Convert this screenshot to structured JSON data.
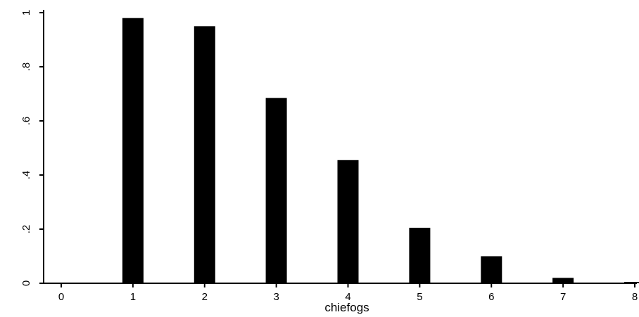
{
  "chart_data": {
    "type": "bar",
    "title": "",
    "xlabel": "chiefogs",
    "ylabel": "",
    "x": [
      1,
      2,
      3,
      4,
      5,
      6,
      7,
      8
    ],
    "values": [
      0.98,
      0.95,
      0.685,
      0.455,
      0.205,
      0.1,
      0.02,
      0.005
    ],
    "xlim": [
      0,
      8
    ],
    "ylim": [
      0,
      1
    ],
    "xticks": [
      0,
      1,
      2,
      3,
      4,
      5,
      6,
      7,
      8
    ],
    "yticks": [
      0,
      0.2,
      0.4,
      0.6,
      0.8,
      1
    ],
    "xtick_labels": [
      "0",
      "1",
      "2",
      "3",
      "4",
      "5",
      "6",
      "7",
      "8"
    ],
    "ytick_labels": [
      "0",
      ".2",
      ".4",
      ".6",
      ".8",
      "1"
    ],
    "grid": false,
    "legend": "none",
    "colors": {
      "bar": "#000000",
      "axis": "#000000",
      "background": "#ffffff"
    }
  }
}
